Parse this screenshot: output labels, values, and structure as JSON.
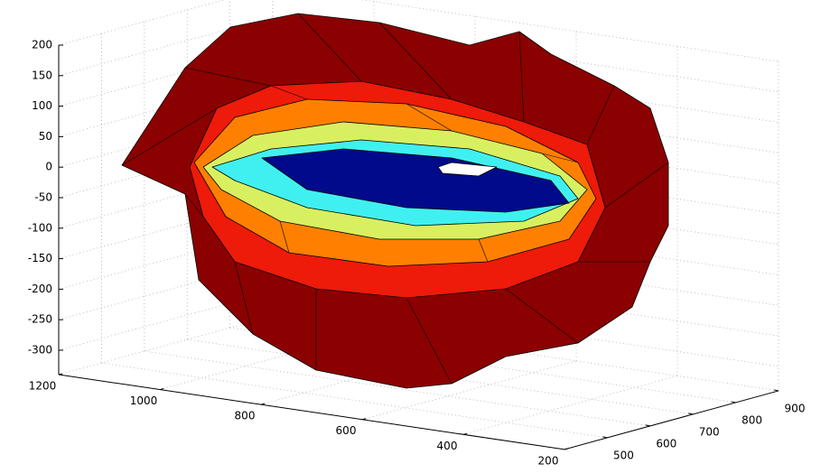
{
  "chart_data": {
    "type": "surface",
    "xlim": [
      200,
      1200
    ],
    "xticks": [
      200,
      400,
      600,
      800,
      1000,
      1200
    ],
    "ylim": [
      400,
      900
    ],
    "yticks": [
      500,
      600,
      700,
      800,
      900
    ],
    "zlim": [
      -340,
      200
    ],
    "zticks": [
      -300,
      -250,
      -200,
      -150,
      -100,
      -50,
      0,
      50,
      100,
      150,
      200
    ],
    "grid": true
  }
}
